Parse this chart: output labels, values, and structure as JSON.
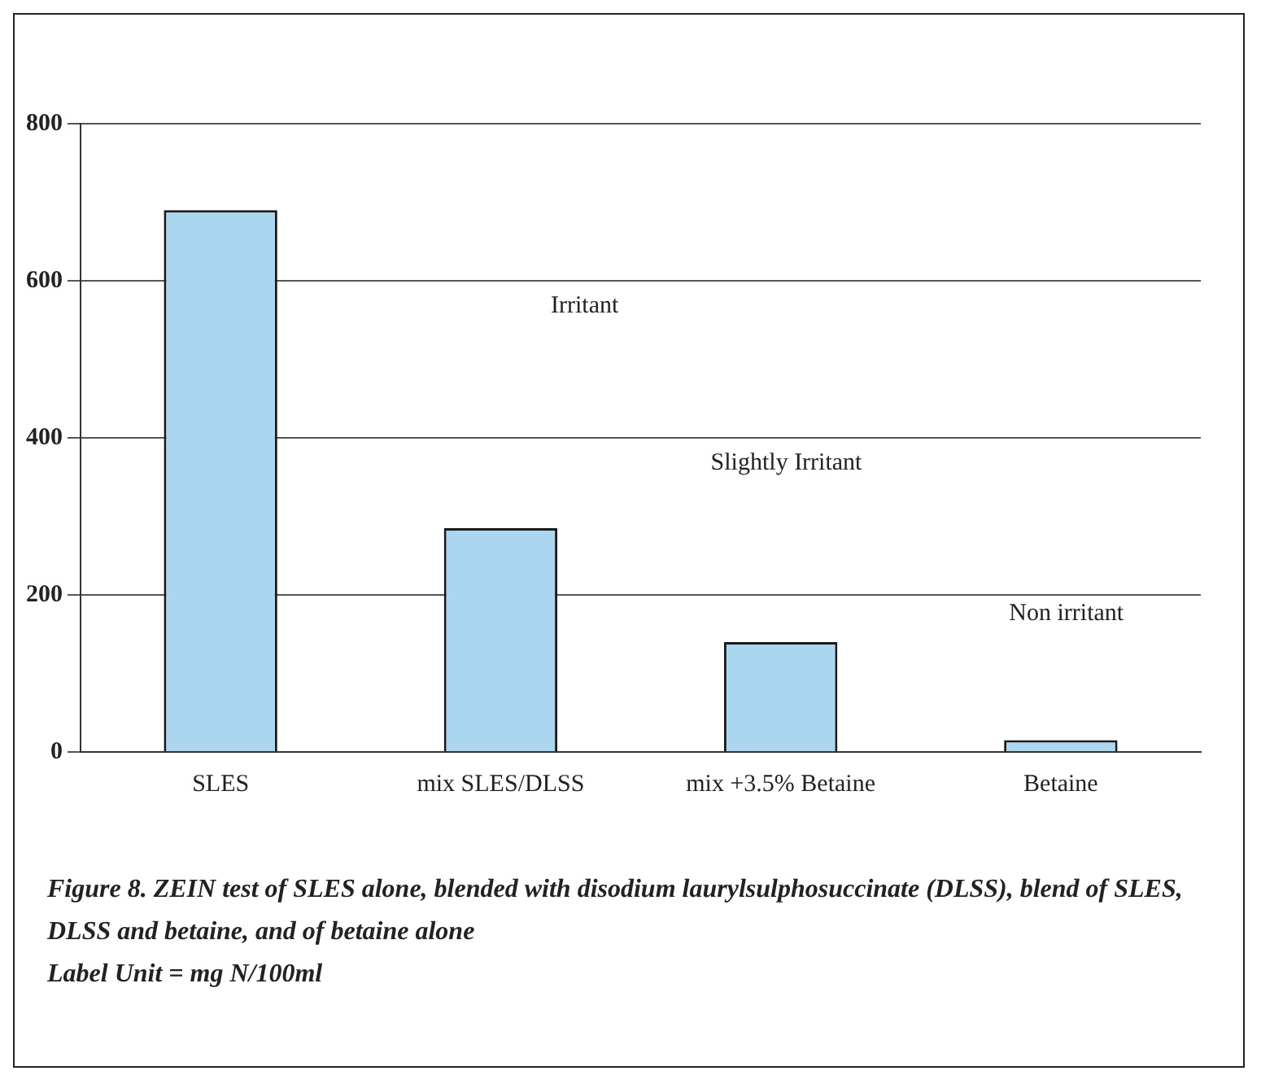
{
  "chart_data": {
    "type": "bar",
    "categories": [
      "SLES",
      "mix SLES/DLSS",
      "mix +3.5% Betaine",
      "Betaine"
    ],
    "values": [
      690,
      285,
      140,
      15
    ],
    "color": "#aad6f0",
    "ylim": [
      0,
      800
    ],
    "yticks": [
      0,
      200,
      400,
      600,
      800
    ],
    "grid": "y",
    "annotations": [
      "Irritant",
      "Slightly Irritant",
      "Non irritant",
      "Figure 8. ZEIN test of SLES alone, blended with disodium laurylsulphosuccinate (DLSS), blend of  SLES, DLSS and betaine, and of betaine alone",
      "Label Unit = mg N/100ml"
    ]
  }
}
